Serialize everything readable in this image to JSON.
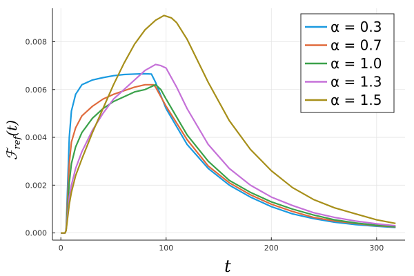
{
  "chart_data": {
    "type": "line",
    "title": "",
    "xlabel": "t",
    "ylabel": "ℱ_ref(t)",
    "ylabel_main": "ℱ",
    "ylabel_sub": "ref",
    "ylabel_tail": "(t)",
    "xlim": [
      -8,
      327
    ],
    "ylim": [
      -0.0003,
      0.0094
    ],
    "xticks": [
      0,
      100,
      200,
      300
    ],
    "yticks": [
      0.0,
      0.002,
      0.004,
      0.006,
      0.008
    ],
    "xtick_labels": [
      "0",
      "100",
      "200",
      "300"
    ],
    "ytick_labels": [
      "0.000",
      "0.002",
      "0.004",
      "0.006",
      "0.008"
    ],
    "grid": true,
    "legend_position": "top-right",
    "series": [
      {
        "name": "α = 0.3",
        "color": "#1a9ae0",
        "x": [
          0,
          4,
          5,
          8,
          10,
          14,
          20,
          30,
          40,
          50,
          60,
          70,
          80,
          86,
          90,
          100,
          120,
          140,
          160,
          180,
          200,
          220,
          240,
          260,
          280,
          300,
          318
        ],
        "y": [
          0,
          0,
          0.0001,
          0.004,
          0.0051,
          0.0058,
          0.0062,
          0.0064,
          0.0065,
          0.00658,
          0.00663,
          0.00665,
          0.00666,
          0.00665,
          0.0063,
          0.0052,
          0.0037,
          0.0027,
          0.002,
          0.0015,
          0.0011,
          0.0008,
          0.0006,
          0.00045,
          0.00035,
          0.00028,
          0.00023
        ]
      },
      {
        "name": "α = 0.7",
        "color": "#e06a3c",
        "x": [
          0,
          4,
          5,
          8,
          10,
          14,
          20,
          30,
          40,
          50,
          60,
          70,
          80,
          88,
          90,
          100,
          120,
          140,
          160,
          180,
          200,
          220,
          240,
          260,
          280,
          300,
          318
        ],
        "y": [
          0,
          0,
          0.0001,
          0.0029,
          0.0038,
          0.0044,
          0.0049,
          0.0053,
          0.0056,
          0.0058,
          0.00595,
          0.0061,
          0.0062,
          0.0062,
          0.0061,
          0.0053,
          0.0039,
          0.0028,
          0.0021,
          0.0016,
          0.0012,
          0.0009,
          0.00065,
          0.0005,
          0.0004,
          0.0003,
          0.00025
        ]
      },
      {
        "name": "α = 1.0",
        "color": "#3aa14a",
        "x": [
          0,
          4,
          5,
          8,
          10,
          14,
          20,
          30,
          40,
          50,
          60,
          70,
          80,
          90,
          95,
          100,
          120,
          140,
          160,
          180,
          200,
          220,
          240,
          260,
          280,
          300,
          318
        ],
        "y": [
          0,
          0,
          0.0001,
          0.0021,
          0.0029,
          0.0036,
          0.0042,
          0.0048,
          0.0052,
          0.0055,
          0.0057,
          0.0059,
          0.006,
          0.0062,
          0.006,
          0.0056,
          0.0041,
          0.003,
          0.0022,
          0.0017,
          0.0013,
          0.001,
          0.00075,
          0.00055,
          0.00042,
          0.00032,
          0.00026
        ]
      },
      {
        "name": "α = 1.3",
        "color": "#c571d8",
        "x": [
          0,
          4,
          5,
          8,
          10,
          14,
          20,
          30,
          40,
          50,
          60,
          70,
          80,
          90,
          95,
          100,
          110,
          120,
          140,
          160,
          180,
          200,
          220,
          240,
          260,
          280,
          300,
          318
        ],
        "y": [
          0,
          0,
          0.0001,
          0.0015,
          0.002,
          0.0027,
          0.0034,
          0.0043,
          0.005,
          0.0056,
          0.006,
          0.0064,
          0.0068,
          0.00705,
          0.007,
          0.0069,
          0.0061,
          0.0052,
          0.0037,
          0.0027,
          0.002,
          0.0015,
          0.00115,
          0.00085,
          0.00065,
          0.0005,
          0.00038,
          0.0003
        ]
      },
      {
        "name": "α = 1.5",
        "color": "#a78f1a",
        "x": [
          0,
          4,
          5,
          8,
          10,
          14,
          20,
          30,
          40,
          50,
          60,
          70,
          80,
          90,
          98,
          105,
          110,
          120,
          140,
          160,
          180,
          200,
          220,
          240,
          260,
          280,
          300,
          318
        ],
        "y": [
          0,
          0,
          0.0001,
          0.0012,
          0.0017,
          0.0024,
          0.0031,
          0.0042,
          0.0052,
          0.0062,
          0.0071,
          0.0079,
          0.0085,
          0.0089,
          0.0091,
          0.009,
          0.0088,
          0.0081,
          0.0063,
          0.0047,
          0.0035,
          0.0026,
          0.0019,
          0.0014,
          0.00105,
          0.0008,
          0.00055,
          0.0004
        ]
      }
    ]
  }
}
